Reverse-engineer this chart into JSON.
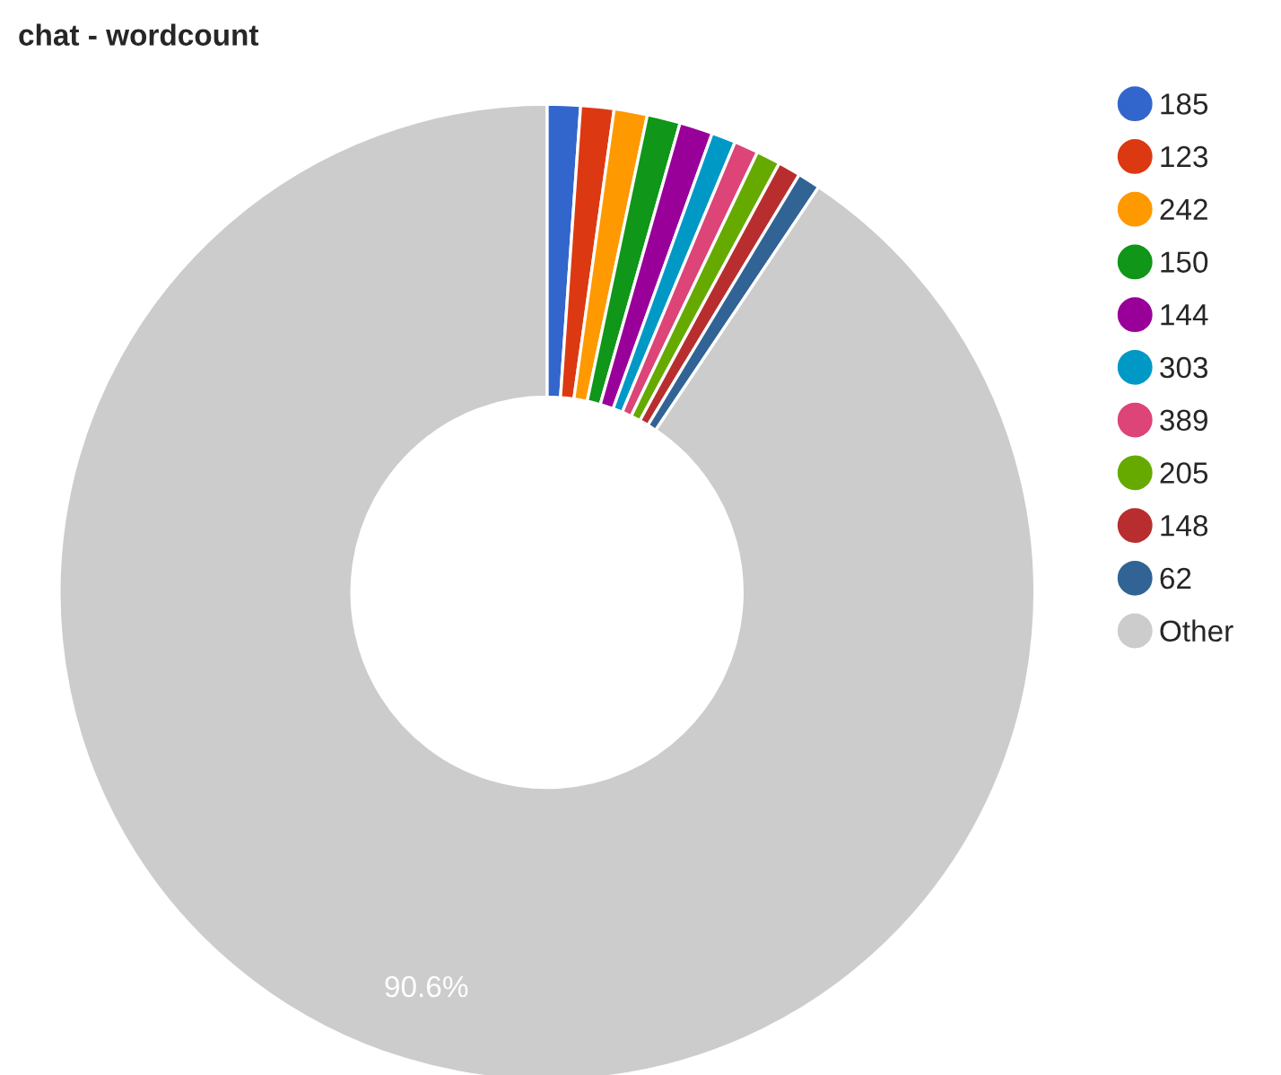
{
  "chart_data": {
    "type": "donut",
    "title": "chat - wordcount",
    "categories": [
      "185",
      "123",
      "242",
      "150",
      "144",
      "303",
      "389",
      "205",
      "148",
      "62",
      "Other"
    ],
    "values": [
      1.1,
      1.1,
      1.1,
      1.1,
      1.1,
      0.8,
      0.8,
      0.8,
      0.75,
      0.75,
      90.6
    ],
    "colors": [
      "#3366cc",
      "#dc3912",
      "#ff9900",
      "#109618",
      "#990099",
      "#0099c6",
      "#dd4477",
      "#66aa00",
      "#b82e2e",
      "#316395",
      "#cccccc"
    ],
    "value_labels": [
      null,
      null,
      null,
      null,
      null,
      null,
      null,
      null,
      null,
      null,
      "90.6%"
    ],
    "legend": "right"
  }
}
